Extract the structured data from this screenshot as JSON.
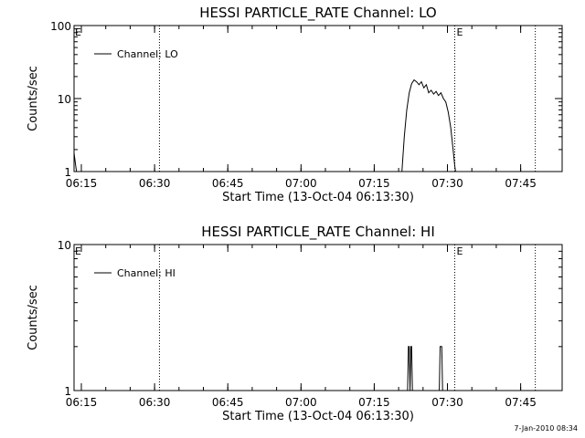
{
  "chart_data": [
    {
      "type": "line",
      "title": "HESSI PARTICLE_RATE Channel: LO",
      "xlabel": "Start Time (13-Oct-04 06:13:30)",
      "ylabel": "Counts/sec",
      "yscale": "log",
      "ylim": [
        1,
        100
      ],
      "xlim": [
        "06:13:30",
        "07:53:30"
      ],
      "x_ticks": [
        "06:15",
        "06:30",
        "06:45",
        "07:00",
        "07:15",
        "07:30",
        "07:45"
      ],
      "y_ticks": [
        "1",
        "10",
        "100"
      ],
      "legend": {
        "placement": "top-left",
        "entries": [
          "Channel: LO"
        ]
      },
      "vertical_markers": [
        {
          "x": "06:31:00",
          "label": ""
        },
        {
          "x": "07:31:30",
          "label": "E"
        },
        {
          "x": "07:48:00",
          "label": ""
        }
      ],
      "left_marker_label": "E",
      "series": [
        {
          "name": "Channel: LO",
          "x": [
            "06:13:30",
            "06:13:50",
            "06:14:00",
            "07:20:40",
            "07:21:10",
            "07:21:40",
            "07:22:10",
            "07:22:40",
            "07:23:10",
            "07:23:40",
            "07:24:10",
            "07:24:40",
            "07:25:10",
            "07:25:40",
            "07:26:10",
            "07:26:40",
            "07:27:10",
            "07:27:40",
            "07:28:10",
            "07:28:40",
            "07:29:10",
            "07:29:40",
            "07:30:10",
            "07:30:40",
            "07:31:10",
            "07:31:30",
            "07:31:40"
          ],
          "values": [
            1.8,
            1.2,
            1.0,
            1.0,
            3.0,
            7.0,
            12.0,
            16.0,
            18.0,
            17.0,
            15.5,
            17.0,
            14.0,
            15.5,
            12.0,
            13.0,
            11.5,
            12.5,
            11.0,
            12.0,
            10.0,
            9.0,
            6.5,
            4.0,
            2.0,
            1.2,
            1.0
          ]
        }
      ]
    },
    {
      "type": "line",
      "title": "HESSI PARTICLE_RATE Channel: HI",
      "xlabel": "Start Time (13-Oct-04 06:13:30)",
      "ylabel": "Counts/sec",
      "yscale": "log",
      "ylim": [
        1,
        10
      ],
      "xlim": [
        "06:13:30",
        "07:53:30"
      ],
      "x_ticks": [
        "06:15",
        "06:30",
        "06:45",
        "07:00",
        "07:15",
        "07:30",
        "07:45"
      ],
      "y_ticks": [
        "1",
        "10"
      ],
      "legend": {
        "placement": "top-left",
        "entries": [
          "Channel: HI"
        ]
      },
      "vertical_markers": [
        {
          "x": "06:31:00",
          "label": ""
        },
        {
          "x": "07:31:30",
          "label": "E"
        },
        {
          "x": "07:48:00",
          "label": ""
        }
      ],
      "left_marker_label": "E",
      "series": [
        {
          "name": "Channel: HI",
          "x": [
            "07:21:50",
            "07:22:00",
            "07:22:10",
            "07:22:20",
            "07:22:30",
            "07:22:40",
            "07:22:50",
            "07:23:00",
            "07:23:10",
            "07:28:20",
            "07:28:30",
            "07:28:40",
            "07:28:50",
            "07:29:00"
          ],
          "values": [
            1,
            2,
            2,
            1,
            2,
            2,
            1,
            1,
            1,
            1,
            2,
            2,
            2,
            1
          ]
        }
      ]
    }
  ],
  "footer": {
    "timestamp": "7-Jan-2010 08:34"
  }
}
